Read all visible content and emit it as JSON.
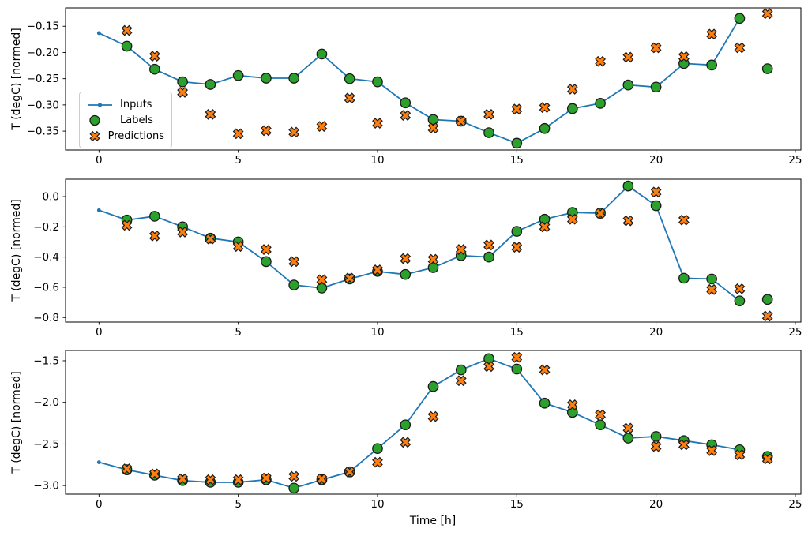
{
  "figure": {
    "background": "#ffffff",
    "axis_color": "#000000",
    "xlabel": "Time [h]",
    "ylabel": "T (degC) [normed]"
  },
  "legend": {
    "position": "upper-left-of-first-subplot",
    "items": [
      {
        "label": "Inputs",
        "marker": "line-dot",
        "color": "#1f77b4"
      },
      {
        "label": "Labels",
        "marker": "circle",
        "color": "#2ca02c"
      },
      {
        "label": "Predictions",
        "marker": "x",
        "color": "#ff7f0e"
      }
    ]
  },
  "chart_data": [
    {
      "type": "line",
      "title": "",
      "xlabel": "",
      "ylabel": "T (degC) [normed]",
      "xlim": [
        -1.2,
        25.2
      ],
      "ylim": [
        -0.386,
        -0.115
      ],
      "grid": false,
      "xticks": {
        "values": [
          0,
          5,
          10,
          15,
          20,
          25
        ],
        "labels": [
          "0",
          "5",
          "10",
          "15",
          "20",
          "25"
        ]
      },
      "yticks": {
        "values": [
          -0.15,
          -0.2,
          -0.25,
          -0.3,
          -0.35
        ],
        "labels": [
          "−0.15",
          "−0.20",
          "−0.25",
          "−0.30",
          "−0.35"
        ]
      },
      "series": [
        {
          "name": "Inputs",
          "style": "line-dot",
          "color": "#1f77b4",
          "x": [
            0,
            1,
            2,
            3,
            4,
            5,
            6,
            7,
            8,
            9,
            10,
            11,
            12,
            13,
            14,
            15,
            16,
            17,
            18,
            19,
            20,
            21,
            22,
            23
          ],
          "y": [
            -0.163,
            -0.188,
            -0.232,
            -0.256,
            -0.261,
            -0.244,
            -0.249,
            -0.249,
            -0.203,
            -0.25,
            -0.256,
            -0.296,
            -0.328,
            -0.331,
            -0.353,
            -0.373,
            -0.345,
            -0.307,
            -0.297,
            -0.262,
            -0.266,
            -0.221,
            -0.224,
            -0.135
          ]
        },
        {
          "name": "Labels",
          "style": "circle",
          "color": "#2ca02c",
          "edge": "#1a1a1a",
          "x": [
            1,
            2,
            3,
            4,
            5,
            6,
            7,
            8,
            9,
            10,
            11,
            12,
            13,
            14,
            15,
            16,
            17,
            18,
            19,
            20,
            21,
            22,
            23,
            24
          ],
          "y": [
            -0.188,
            -0.232,
            -0.256,
            -0.261,
            -0.244,
            -0.249,
            -0.249,
            -0.203,
            -0.25,
            -0.256,
            -0.296,
            -0.328,
            -0.331,
            -0.353,
            -0.373,
            -0.345,
            -0.307,
            -0.297,
            -0.262,
            -0.266,
            -0.221,
            -0.224,
            -0.135,
            -0.231
          ]
        },
        {
          "name": "Predictions",
          "style": "x",
          "color": "#ff7f0e",
          "edge": "#1a1a1a",
          "x": [
            1,
            2,
            3,
            4,
            5,
            6,
            7,
            8,
            9,
            10,
            11,
            12,
            13,
            14,
            15,
            16,
            17,
            18,
            19,
            20,
            21,
            22,
            23,
            24
          ],
          "y": [
            -0.158,
            -0.207,
            -0.276,
            -0.318,
            -0.355,
            -0.349,
            -0.352,
            -0.341,
            -0.287,
            -0.335,
            -0.32,
            -0.344,
            -0.331,
            -0.318,
            -0.308,
            -0.305,
            -0.27,
            -0.217,
            -0.209,
            -0.191,
            -0.208,
            -0.165,
            -0.191,
            -0.126
          ]
        }
      ]
    },
    {
      "type": "line",
      "title": "",
      "xlabel": "",
      "ylabel": "T (degC) [normed]",
      "xlim": [
        -1.2,
        25.2
      ],
      "ylim": [
        -0.83,
        0.115
      ],
      "grid": false,
      "xticks": {
        "values": [
          0,
          5,
          10,
          15,
          20,
          25
        ],
        "labels": [
          "0",
          "5",
          "10",
          "15",
          "20",
          "25"
        ]
      },
      "yticks": {
        "values": [
          0.0,
          -0.2,
          -0.4,
          -0.6,
          -0.8
        ],
        "labels": [
          "0.0",
          "−0.2",
          "−0.4",
          "−0.6",
          "−0.8"
        ]
      },
      "series": [
        {
          "name": "Inputs",
          "style": "line-dot",
          "color": "#1f77b4",
          "x": [
            0,
            1,
            2,
            3,
            4,
            5,
            6,
            7,
            8,
            9,
            10,
            11,
            12,
            13,
            14,
            15,
            16,
            17,
            18,
            19,
            20,
            21,
            22,
            23
          ],
          "y": [
            -0.09,
            -0.155,
            -0.13,
            -0.2,
            -0.275,
            -0.3,
            -0.43,
            -0.585,
            -0.605,
            -0.545,
            -0.495,
            -0.515,
            -0.47,
            -0.39,
            -0.4,
            -0.23,
            -0.15,
            -0.105,
            -0.11,
            0.07,
            -0.06,
            -0.54,
            -0.545,
            -0.69
          ]
        },
        {
          "name": "Labels",
          "style": "circle",
          "color": "#2ca02c",
          "edge": "#1a1a1a",
          "x": [
            1,
            2,
            3,
            4,
            5,
            6,
            7,
            8,
            9,
            10,
            11,
            12,
            13,
            14,
            15,
            16,
            17,
            18,
            19,
            20,
            21,
            22,
            23,
            24
          ],
          "y": [
            -0.155,
            -0.13,
            -0.2,
            -0.275,
            -0.3,
            -0.43,
            -0.585,
            -0.605,
            -0.545,
            -0.495,
            -0.515,
            -0.47,
            -0.39,
            -0.4,
            -0.23,
            -0.15,
            -0.105,
            -0.11,
            0.07,
            -0.06,
            -0.54,
            -0.545,
            -0.69,
            -0.68
          ]
        },
        {
          "name": "Predictions",
          "style": "x",
          "color": "#ff7f0e",
          "edge": "#1a1a1a",
          "x": [
            1,
            2,
            3,
            4,
            5,
            6,
            7,
            8,
            9,
            10,
            11,
            12,
            13,
            14,
            15,
            16,
            17,
            18,
            19,
            20,
            21,
            22,
            23,
            24
          ],
          "y": [
            -0.19,
            -0.26,
            -0.235,
            -0.28,
            -0.33,
            -0.35,
            -0.43,
            -0.55,
            -0.54,
            -0.485,
            -0.41,
            -0.415,
            -0.35,
            -0.32,
            -0.335,
            -0.2,
            -0.15,
            -0.11,
            -0.16,
            0.03,
            -0.155,
            -0.615,
            -0.61,
            -0.79
          ]
        }
      ]
    },
    {
      "type": "line",
      "title": "",
      "xlabel": "Time [h]",
      "ylabel": "T (degC) [normed]",
      "xlim": [
        -1.2,
        25.2
      ],
      "ylim": [
        -3.103,
        -1.377
      ],
      "grid": false,
      "xticks": {
        "values": [
          0,
          5,
          10,
          15,
          20,
          25
        ],
        "labels": [
          "0",
          "5",
          "10",
          "15",
          "20",
          "25"
        ]
      },
      "yticks": {
        "values": [
          -1.5,
          -2.0,
          -2.5,
          -3.0
        ],
        "labels": [
          "−1.5",
          "−2.0",
          "−2.5",
          "−3.0"
        ]
      },
      "series": [
        {
          "name": "Inputs",
          "style": "line-dot",
          "color": "#1f77b4",
          "x": [
            0,
            1,
            2,
            3,
            4,
            5,
            6,
            7,
            8,
            9,
            10,
            11,
            12,
            13,
            14,
            15,
            16,
            17,
            18,
            19,
            20,
            21,
            22,
            23
          ],
          "y": [
            -2.72,
            -2.81,
            -2.875,
            -2.94,
            -2.96,
            -2.96,
            -2.93,
            -3.03,
            -2.93,
            -2.835,
            -2.555,
            -2.27,
            -1.81,
            -1.61,
            -1.475,
            -1.6,
            -2.01,
            -2.12,
            -2.27,
            -2.43,
            -2.41,
            -2.46,
            -2.51,
            -2.57
          ]
        },
        {
          "name": "Labels",
          "style": "circle",
          "color": "#2ca02c",
          "edge": "#1a1a1a",
          "x": [
            1,
            2,
            3,
            4,
            5,
            6,
            7,
            8,
            9,
            10,
            11,
            12,
            13,
            14,
            15,
            16,
            17,
            18,
            19,
            20,
            21,
            22,
            23,
            24
          ],
          "y": [
            -2.81,
            -2.875,
            -2.94,
            -2.96,
            -2.96,
            -2.93,
            -3.03,
            -2.93,
            -2.835,
            -2.555,
            -2.27,
            -1.81,
            -1.61,
            -1.475,
            -1.6,
            -2.01,
            -2.12,
            -2.27,
            -2.43,
            -2.41,
            -2.46,
            -2.51,
            -2.57,
            -2.65
          ]
        },
        {
          "name": "Predictions",
          "style": "x",
          "color": "#ff7f0e",
          "edge": "#1a1a1a",
          "x": [
            1,
            2,
            3,
            4,
            5,
            6,
            7,
            8,
            9,
            10,
            11,
            12,
            13,
            14,
            15,
            16,
            17,
            18,
            19,
            20,
            21,
            22,
            23,
            24
          ],
          "y": [
            -2.8,
            -2.86,
            -2.92,
            -2.93,
            -2.93,
            -2.91,
            -2.89,
            -2.92,
            -2.835,
            -2.72,
            -2.48,
            -2.17,
            -1.74,
            -1.57,
            -1.46,
            -1.61,
            -2.03,
            -2.15,
            -2.31,
            -2.53,
            -2.51,
            -2.58,
            -2.63,
            -2.68
          ]
        }
      ]
    }
  ]
}
